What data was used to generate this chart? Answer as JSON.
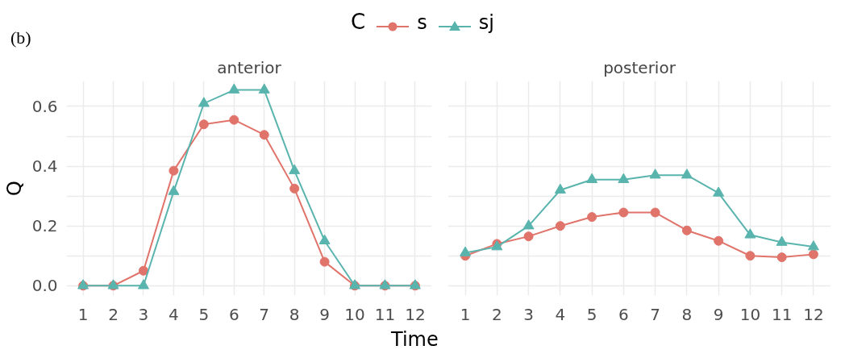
{
  "chart_data": [
    {
      "type": "line",
      "title": "anterior",
      "ylabel": "Q",
      "xlabel": "Time",
      "legend_title": "C",
      "legend": "top",
      "annotations": [
        "(b)"
      ],
      "grid": true,
      "x": [
        1,
        2,
        3,
        4,
        5,
        6,
        7,
        8,
        9,
        10,
        11,
        12
      ],
      "xlim": [
        0.45,
        12.55
      ],
      "xticks": [
        1,
        2,
        3,
        4,
        5,
        6,
        7,
        8,
        9,
        10,
        11,
        12
      ],
      "ylim": [
        -0.033,
        0.685
      ],
      "yticks": [
        {
          "value": 0,
          "label": "0.0"
        },
        {
          "value": 0.1,
          "label": null
        },
        0.2,
        {
          "value": 0.3,
          "label": null
        },
        0.4,
        {
          "value": 0.5,
          "label": null
        },
        0.6
      ],
      "series": [
        {
          "name": "s",
          "color": "#e0736a",
          "marker": "circle",
          "values": [
            0,
            0,
            0.05,
            0.385,
            0.54,
            0.555,
            0.505,
            0.325,
            0.08,
            0,
            0,
            0
          ]
        },
        {
          "name": "sj",
          "color": "#5ab4ae",
          "marker": "triangle",
          "values": [
            0,
            0,
            0,
            0.315,
            0.61,
            0.655,
            0.655,
            0.385,
            0.15,
            0,
            0,
            0
          ]
        }
      ]
    },
    {
      "type": "line",
      "title": "posterior",
      "tick_labels": "x",
      "grid": true,
      "x": [
        1,
        2,
        3,
        4,
        5,
        6,
        7,
        8,
        9,
        10,
        11,
        12
      ],
      "xlim": [
        0.45,
        12.55
      ],
      "xticks": [
        1,
        2,
        3,
        4,
        5,
        6,
        7,
        8,
        9,
        10,
        11,
        12
      ],
      "ylim": [
        -0.033,
        0.685
      ],
      "yticks": [
        0,
        {
          "value": 0.1,
          "label": null
        },
        0.2,
        {
          "value": 0.3,
          "label": null
        },
        0.4,
        {
          "value": 0.5,
          "label": null
        },
        0.6
      ],
      "series": [
        {
          "color": "#e0736a",
          "marker": "circle",
          "values": [
            0.1,
            0.14,
            0.165,
            0.2,
            0.23,
            0.245,
            0.245,
            0.185,
            0.15,
            0.1,
            0.095,
            0.105
          ]
        },
        {
          "color": "#5ab4ae",
          "marker": "triangle",
          "values": [
            0.11,
            0.13,
            0.2,
            0.32,
            0.355,
            0.355,
            0.37,
            0.37,
            0.31,
            0.17,
            0.145,
            0.13
          ]
        }
      ]
    }
  ]
}
